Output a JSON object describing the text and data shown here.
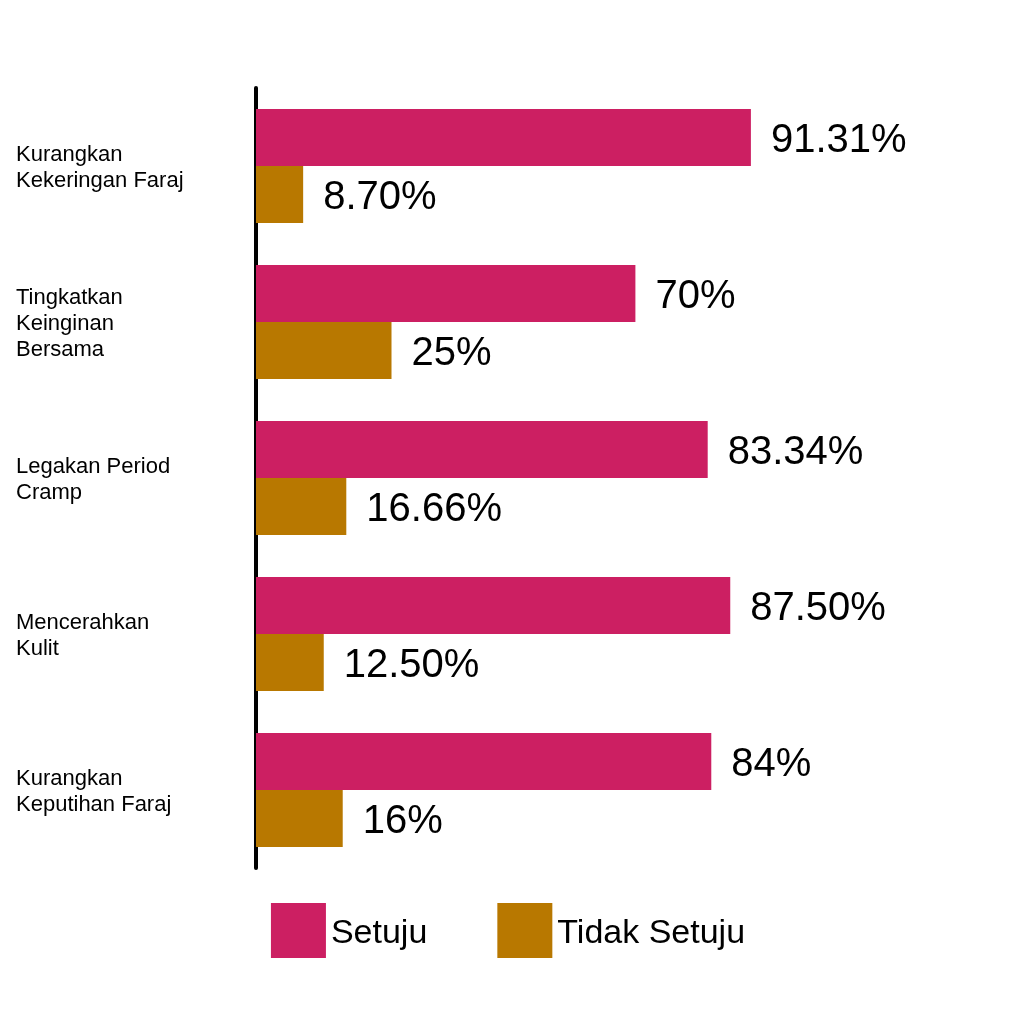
{
  "chart_data": {
    "type": "bar",
    "orientation": "horizontal",
    "categories": [
      "Kurangkan\nKekeringan Faraj",
      "Tingkatkan\nKeinginan\nBersama",
      "Legakan Period\nCramp",
      "Mencerahkan\nKulit",
      "Kurangkan\nKeputihan Faraj"
    ],
    "series": [
      {
        "name": "Setuju",
        "color": "#cc1f62",
        "values": [
          91.31,
          70,
          83.34,
          87.5,
          84
        ],
        "value_labels": [
          "91.31%",
          "70%",
          "83.34%",
          "87.50%",
          "84%"
        ]
      },
      {
        "name": "Tidak Setuju",
        "color": "#b87800",
        "values": [
          8.7,
          25,
          16.66,
          12.5,
          16
        ],
        "value_labels": [
          "8.70%",
          "25%",
          "16.66%",
          "12.50%",
          "16%"
        ]
      }
    ],
    "legend": "bottom"
  }
}
